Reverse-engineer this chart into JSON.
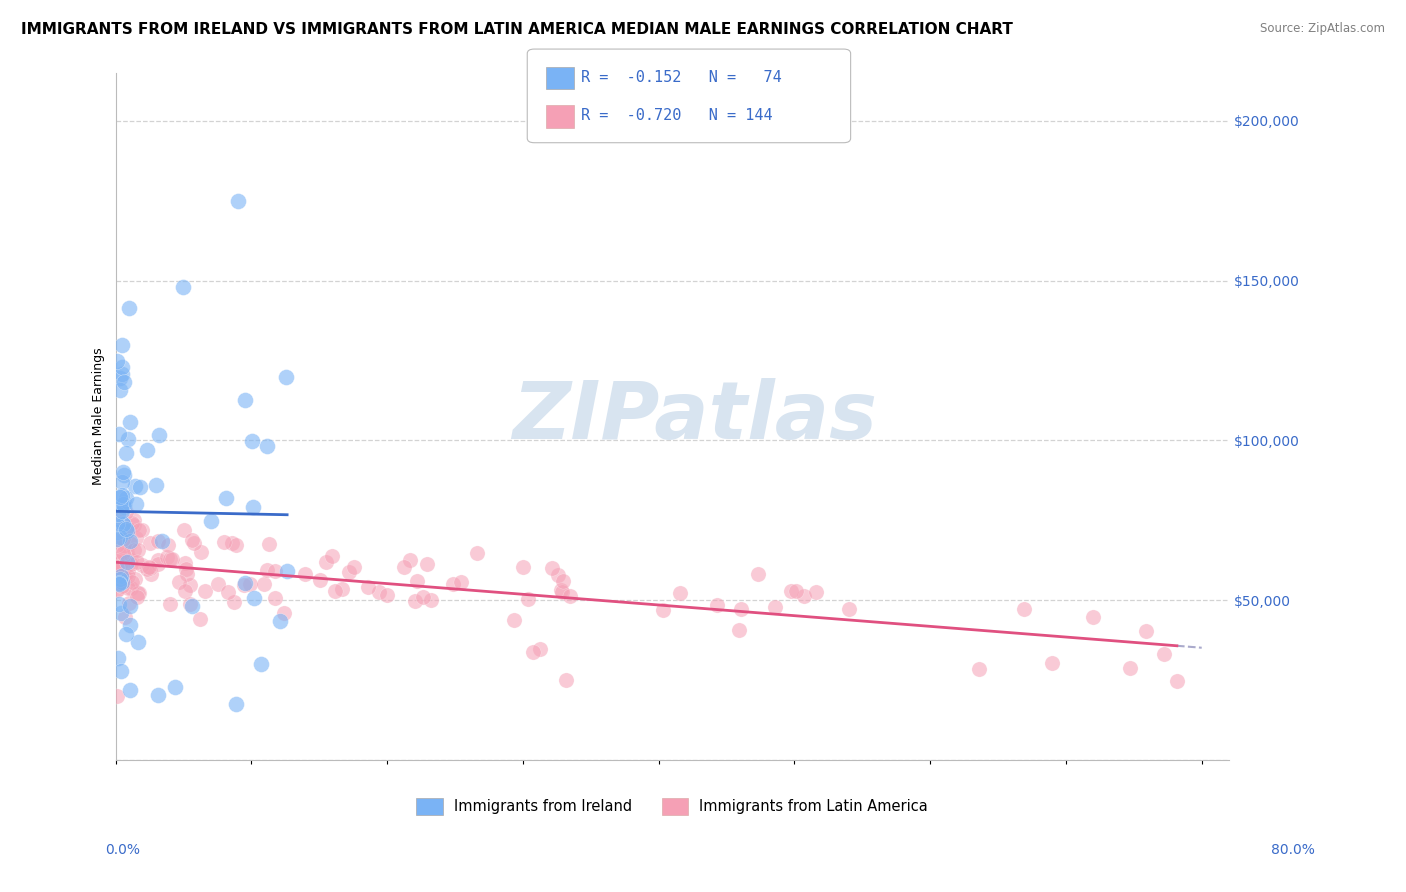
{
  "title": "IMMIGRANTS FROM IRELAND VS IMMIGRANTS FROM LATIN AMERICA MEDIAN MALE EARNINGS CORRELATION CHART",
  "source": "Source: ZipAtlas.com",
  "ylabel": "Median Male Earnings",
  "ylim": [
    0,
    215000
  ],
  "xlim": [
    0.0,
    0.82
  ],
  "y_ticks": [
    0,
    50000,
    100000,
    150000,
    200000
  ],
  "y_tick_labels": [
    "",
    "$50,000",
    "$100,000",
    "$150,000",
    "$200,000"
  ],
  "series1_color": "#7ab3f5",
  "series1_line_color": "#3a6bc9",
  "series1_label": "Immigrants from Ireland",
  "series1_R": -0.152,
  "series1_N": 74,
  "series2_color": "#f5a0b5",
  "series2_line_color": "#e05080",
  "series2_label": "Immigrants from Latin America",
  "series2_R": -0.72,
  "series2_N": 144,
  "legend_text_color": "#3a6bc9",
  "legend_label_color": "#333333",
  "background_color": "#ffffff",
  "watermark_color": "#d8e4f0",
  "grid_color": "#c8c8c8",
  "title_fontsize": 11,
  "axis_label_fontsize": 9,
  "tick_label_color": "#3a6bc9",
  "tick_fontsize": 10
}
